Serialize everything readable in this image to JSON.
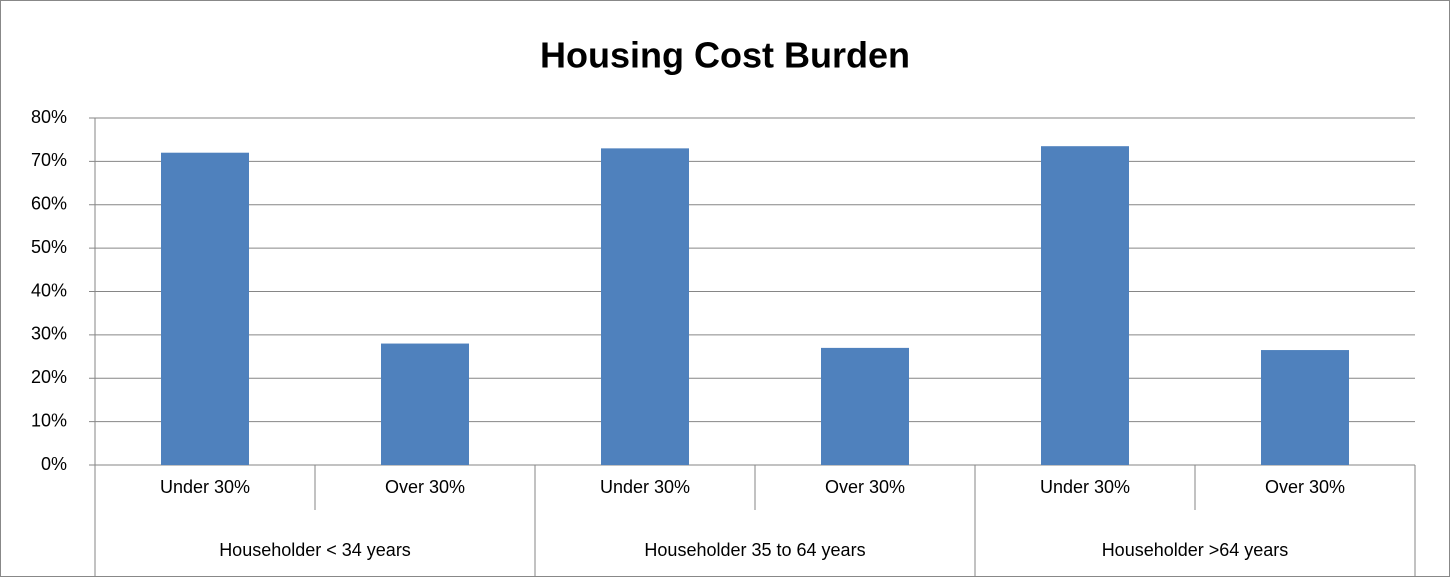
{
  "chart_data": {
    "type": "bar",
    "title": "Housing Cost Burden",
    "categories": [
      "Under 30%",
      "Over 30%",
      "Under 30%",
      "Over 30%",
      "Under 30%",
      "Over 30%"
    ],
    "groups": [
      "Householder < 34 years",
      "Householder 35 to 64 years",
      "Householder >64 years"
    ],
    "values": [
      72,
      28,
      73,
      27,
      73.5,
      26.5
    ],
    "color": "#4f81bd",
    "ylim": [
      0,
      80
    ],
    "yticks": [
      {
        "value": 0,
        "label": "0%"
      },
      {
        "value": 10,
        "label": "10%"
      },
      {
        "value": 20,
        "label": "20%"
      },
      {
        "value": 30,
        "label": "30%"
      },
      {
        "value": 40,
        "label": "40%"
      },
      {
        "value": 50,
        "label": "50%"
      },
      {
        "value": 60,
        "label": "60%"
      },
      {
        "value": 70,
        "label": "70%"
      },
      {
        "value": 80,
        "label": "80%"
      }
    ],
    "grid": true
  }
}
